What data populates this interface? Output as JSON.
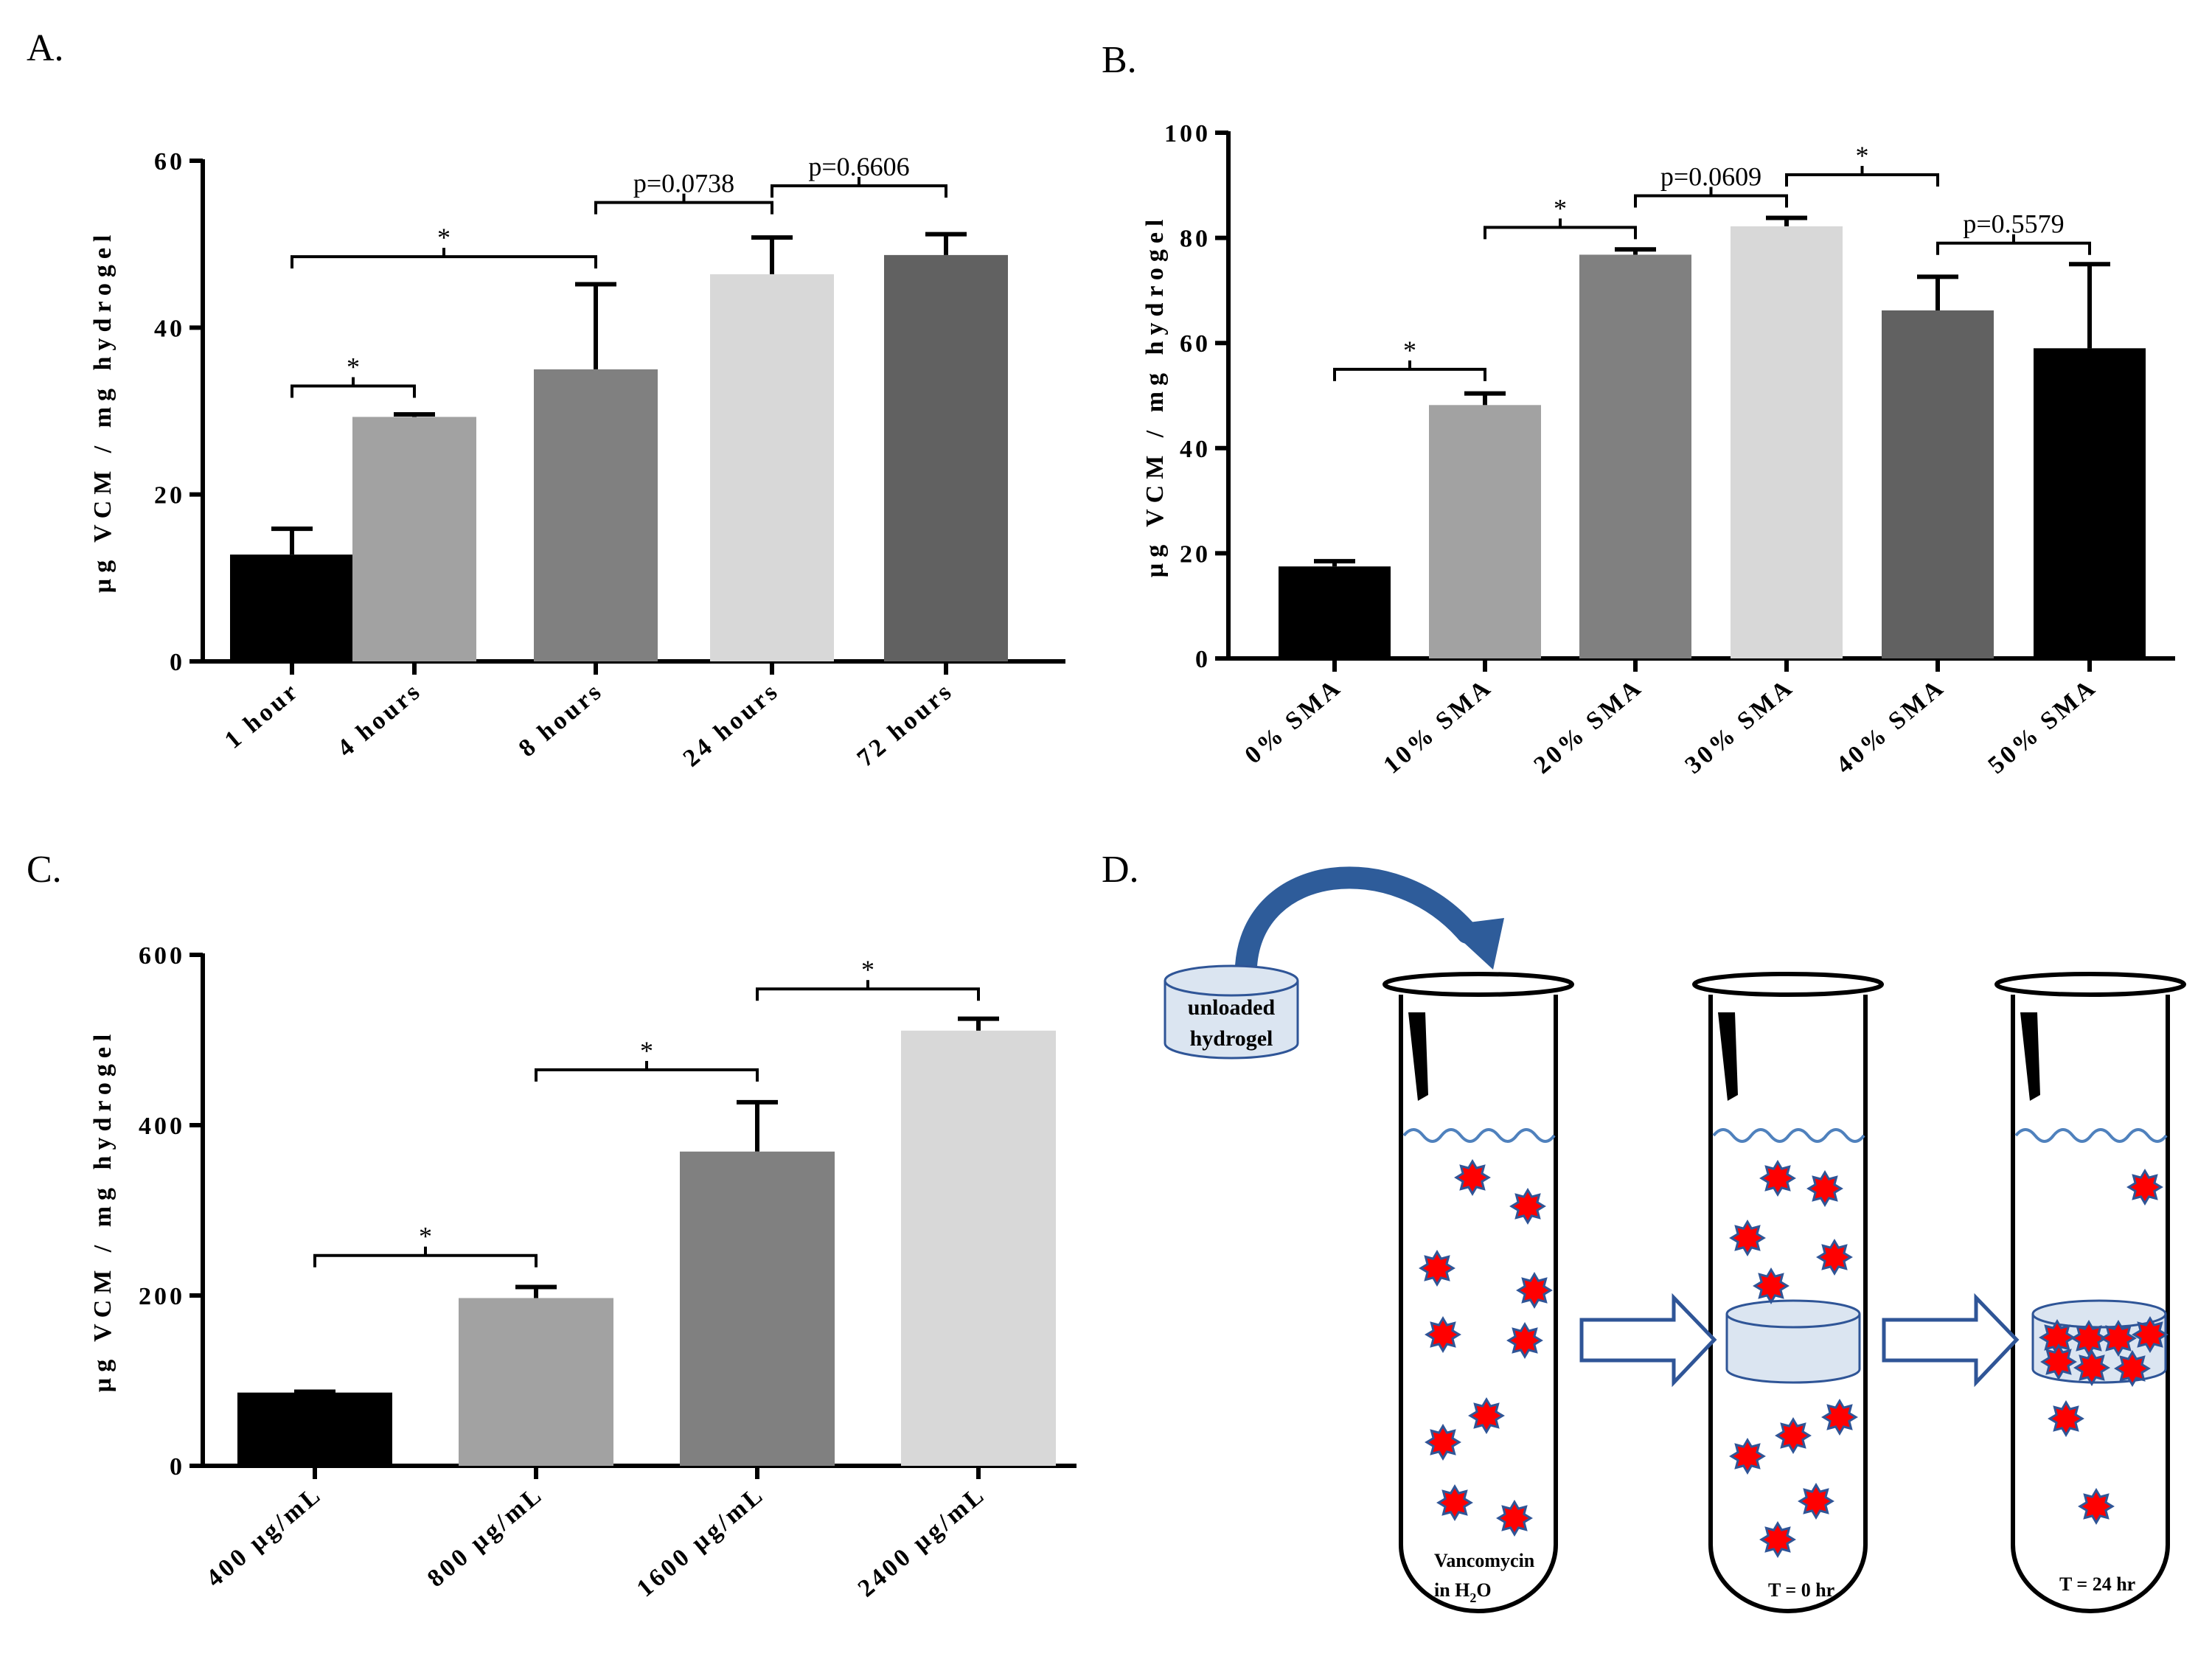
{
  "panels": {
    "A": {
      "letter": "A."
    },
    "B": {
      "letter": "B."
    },
    "C": {
      "letter": "C."
    },
    "D": {
      "letter": "D."
    }
  },
  "chart_data": [
    {
      "id": "A",
      "type": "bar",
      "ylabel": "µg VCM / mg hydrogel",
      "xlabel": "",
      "ylim": [
        0,
        60
      ],
      "yticks": [
        "0",
        "20",
        "40",
        "60"
      ],
      "categories": [
        "1 hour",
        "4 hours",
        "8 hours",
        "24 hours",
        "72 hours"
      ],
      "values": [
        12.8,
        29.3,
        35.0,
        46.4,
        48.7
      ],
      "errors": [
        3.1,
        0.3,
        10.2,
        4.4,
        2.5
      ],
      "colors": [
        "#000000",
        "#a2a2a2",
        "#808080",
        "#d8d8d8",
        "#616161"
      ],
      "comparisons": [
        {
          "from": 0,
          "to": 1,
          "label": "*",
          "y": 33
        },
        {
          "from": 0,
          "to": 2,
          "label": "*",
          "y": 48.5
        },
        {
          "from": 2,
          "to": 3,
          "label": "p=0.0738",
          "y": 55
        },
        {
          "from": 3,
          "to": 4,
          "label": "p=0.6606",
          "y": 57
        }
      ]
    },
    {
      "id": "B",
      "type": "bar",
      "ylabel": "µg VCM / mg hydrogel",
      "xlabel": "",
      "ylim": [
        0,
        100
      ],
      "yticks": [
        "0",
        "20",
        "40",
        "60",
        "80",
        "100"
      ],
      "categories": [
        "0% SMA",
        "10% SMA",
        "20% SMA",
        "30% SMA",
        "40% SMA",
        "50% SMA"
      ],
      "values": [
        17.5,
        48.2,
        76.8,
        82.2,
        66.2,
        59.0
      ],
      "errors": [
        1.0,
        2.2,
        1.0,
        1.6,
        6.4,
        16.0
      ],
      "colors": [
        "#000000",
        "#a2a2a2",
        "#808080",
        "#d8d8d8",
        "#616161",
        "#000000"
      ],
      "comparisons": [
        {
          "from": 0,
          "to": 1,
          "label": "*",
          "y": 55
        },
        {
          "from": 1,
          "to": 2,
          "label": "*",
          "y": 82
        },
        {
          "from": 2,
          "to": 3,
          "label": "p=0.0609",
          "y": 88
        },
        {
          "from": 3,
          "to": 4,
          "label": "*",
          "y": 92
        },
        {
          "from": 4,
          "to": 5,
          "label": "p=0.5579",
          "y": 79
        }
      ]
    },
    {
      "id": "C",
      "type": "bar",
      "ylabel": "µg VCM / mg hydrogel",
      "xlabel": "",
      "ylim": [
        0,
        600
      ],
      "yticks": [
        "0",
        "200",
        "400",
        "600"
      ],
      "categories": [
        "400 µg/mL",
        "800  µg/mL",
        "1600 µg/mL",
        "2400 µg/mL"
      ],
      "values": [
        86,
        197,
        369,
        511
      ],
      "errors": [
        1,
        13,
        58,
        14
      ],
      "colors": [
        "#000000",
        "#a2a2a2",
        "#808080",
        "#d8d8d8"
      ],
      "comparisons": [
        {
          "from": 0,
          "to": 1,
          "label": "*",
          "y": 247
        },
        {
          "from": 1,
          "to": 2,
          "label": "*",
          "y": 465
        },
        {
          "from": 2,
          "to": 3,
          "label": "*",
          "y": 560
        }
      ]
    }
  ],
  "diagram": {
    "hydrogel_label_line1": "unloaded",
    "hydrogel_label_line2": "hydrogel",
    "tube1_label_line1": "Vancomycin",
    "tube1_label_line2_prefix": "in H",
    "tube1_label_line2_sub": "2",
    "tube1_label_line2_suffix": "O",
    "tube2_label": "T = 0 hr",
    "tube3_label": "T = 24 hr",
    "colors": {
      "molecule_fill": "#ff0000",
      "molecule_stroke": "#2f5597",
      "arrow_stroke": "#2f5597",
      "hydrogel_fill": "#dbe5f1",
      "water_line": "#4f81bd",
      "curved_arrow": "#2e5c9a"
    }
  }
}
